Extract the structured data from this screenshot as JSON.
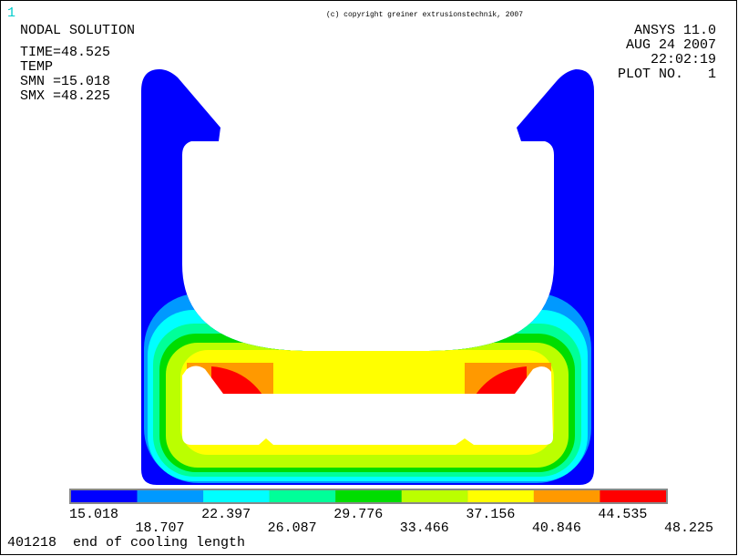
{
  "frame_number": "1",
  "copyright": "(c) copyright greiner extrusionstechnik, 2007",
  "info": {
    "title": "NODAL SOLUTION",
    "lines": [
      "TIME=48.525",
      "TEMP",
      "SMN =15.018",
      "SMX =48.225"
    ]
  },
  "header": {
    "program": "ANSYS 11.0",
    "date": "AUG 24 2007",
    "time": "22:02:19",
    "plot": "PLOT NO.   1"
  },
  "legend": {
    "colors": [
      "#0000ff",
      "#0099ff",
      "#00ffff",
      "#00ff99",
      "#00dd00",
      "#bbff00",
      "#ffff00",
      "#ff9900",
      "#ff0000"
    ],
    "labels": [
      "15.018",
      "18.707",
      "22.397",
      "26.087",
      "29.776",
      "33.466",
      "37.156",
      "40.846",
      "44.535",
      "48.225"
    ]
  },
  "footer": "401218  end of cooling length"
}
